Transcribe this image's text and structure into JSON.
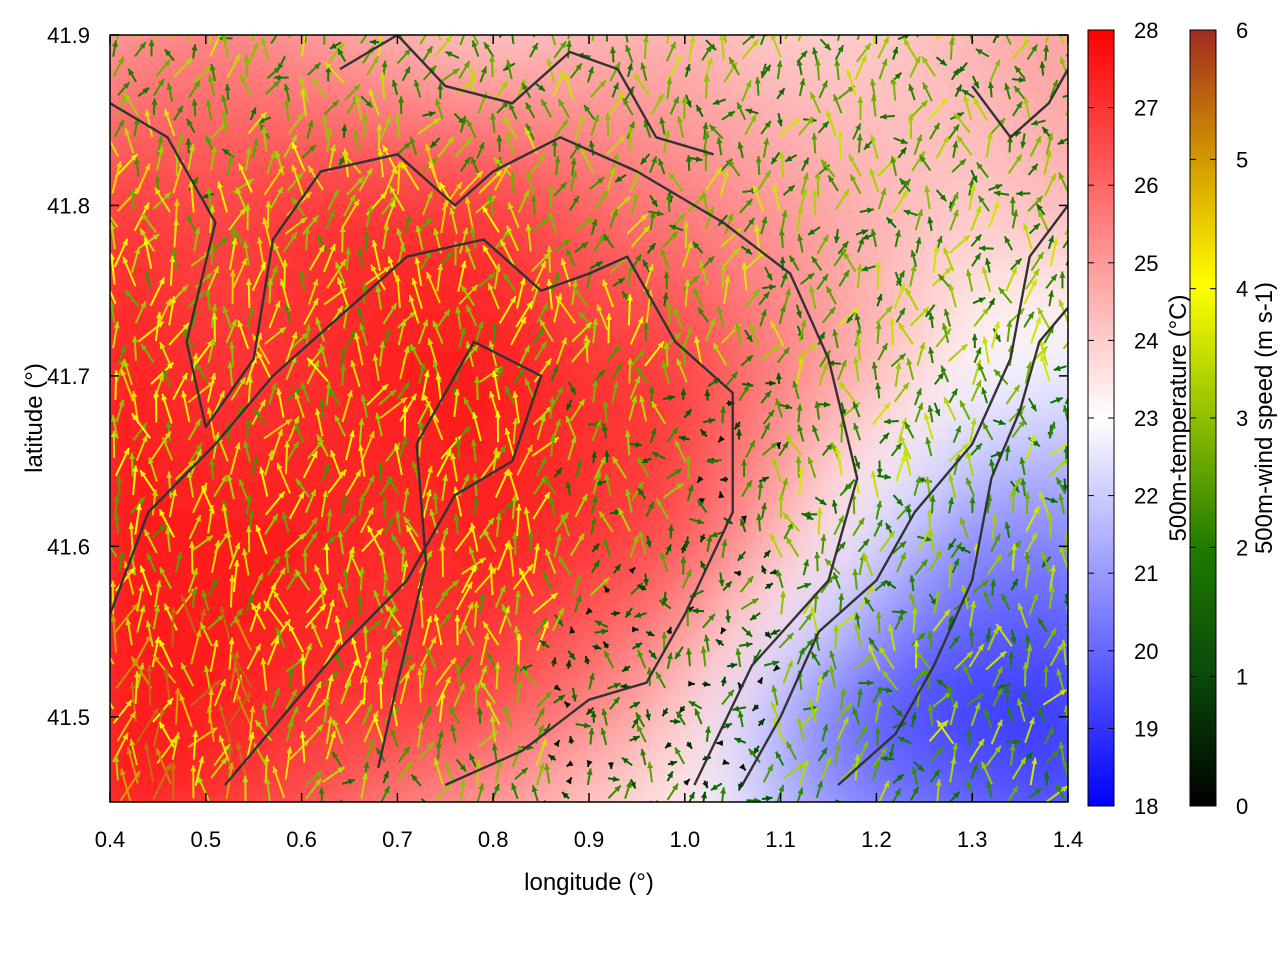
{
  "chart_data": {
    "type": "heatmap",
    "title": "",
    "xlabel": "longitude (°)",
    "ylabel": "latitude (°)",
    "xlim": [
      0.4,
      1.4
    ],
    "ylim": [
      41.45,
      41.9
    ],
    "x_ticks": [
      "0.4",
      "0.5",
      "0.6",
      "0.7",
      "0.8",
      "0.9",
      "1.0",
      "1.1",
      "1.2",
      "1.3",
      "1.4"
    ],
    "y_ticks": [
      "41.5",
      "41.6",
      "41.7",
      "41.8",
      "41.9"
    ],
    "temperature": {
      "label": "500m-temperature (°C)",
      "range": [
        18,
        28
      ],
      "ticks": [
        "18",
        "19",
        "20",
        "21",
        "22",
        "23",
        "24",
        "25",
        "26",
        "27",
        "28"
      ],
      "colors": [
        "#0000ff",
        "#ffffff",
        "#ff0000"
      ],
      "grid_lon": [
        0.4,
        0.5,
        0.6,
        0.7,
        0.8,
        0.9,
        1.0,
        1.1,
        1.2,
        1.3,
        1.4
      ],
      "grid_lat": [
        41.9,
        41.8,
        41.7,
        41.6,
        41.5,
        41.45
      ],
      "values": [
        [
          25.0,
          25.5,
          25.0,
          24.5,
          24.0,
          24.5,
          24.5,
          24.0,
          24.0,
          24.5,
          25.0
        ],
        [
          27.0,
          26.5,
          27.0,
          27.0,
          27.0,
          26.0,
          25.5,
          25.0,
          24.5,
          24.0,
          24.5
        ],
        [
          27.5,
          27.0,
          27.0,
          27.5,
          27.5,
          27.0,
          27.0,
          25.5,
          24.5,
          23.0,
          22.5
        ],
        [
          27.5,
          27.5,
          27.5,
          27.0,
          27.5,
          27.0,
          26.5,
          24.5,
          22.0,
          20.5,
          20.5
        ],
        [
          27.5,
          27.5,
          27.0,
          27.0,
          26.5,
          25.5,
          24.0,
          21.0,
          19.5,
          19.0,
          19.0
        ],
        [
          27.5,
          27.0,
          26.5,
          25.5,
          25.0,
          24.0,
          23.5,
          21.5,
          20.5,
          20.0,
          19.5
        ]
      ]
    },
    "wind_speed": {
      "label": "500m-wind speed (m s-1)",
      "range": [
        0,
        6
      ],
      "ticks": [
        "0",
        "1",
        "2",
        "3",
        "4",
        "5",
        "6"
      ],
      "colors": [
        "#000000",
        "#006400",
        "#2e8b00",
        "#9acd00",
        "#ffff00",
        "#d29a00",
        "#a52a2a"
      ]
    },
    "contours": [
      [
        [
          0.4,
          41.86
        ],
        [
          0.46,
          41.84
        ],
        [
          0.51,
          41.79
        ],
        [
          0.48,
          41.72
        ],
        [
          0.5,
          41.67
        ],
        [
          0.55,
          41.71
        ],
        [
          0.57,
          41.78
        ],
        [
          0.62,
          41.82
        ],
        [
          0.7,
          41.83
        ],
        [
          0.76,
          41.8
        ],
        [
          0.8,
          41.82
        ],
        [
          0.87,
          41.84
        ],
        [
          0.95,
          41.82
        ],
        [
          1.04,
          41.79
        ],
        [
          1.11,
          41.76
        ],
        [
          1.15,
          41.71
        ],
        [
          1.18,
          41.64
        ],
        [
          1.15,
          41.58
        ],
        [
          1.07,
          41.53
        ],
        [
          1.01,
          41.46
        ]
      ],
      [
        [
          0.4,
          41.56
        ],
        [
          0.44,
          41.62
        ],
        [
          0.51,
          41.66
        ],
        [
          0.57,
          41.7
        ],
        [
          0.63,
          41.73
        ],
        [
          0.71,
          41.77
        ],
        [
          0.79,
          41.78
        ],
        [
          0.85,
          41.75
        ],
        [
          0.9,
          41.76
        ],
        [
          0.94,
          41.77
        ],
        [
          0.99,
          41.72
        ],
        [
          1.05,
          41.69
        ],
        [
          1.05,
          41.62
        ],
        [
          1.0,
          41.56
        ],
        [
          0.96,
          41.52
        ],
        [
          0.9,
          41.51
        ],
        [
          0.83,
          41.48
        ],
        [
          0.75,
          41.46
        ]
      ],
      [
        [
          0.52,
          41.46
        ],
        [
          0.58,
          41.5
        ],
        [
          0.64,
          41.54
        ],
        [
          0.71,
          41.58
        ],
        [
          0.76,
          41.63
        ],
        [
          0.82,
          41.65
        ],
        [
          0.85,
          41.7
        ],
        [
          0.78,
          41.72
        ],
        [
          0.72,
          41.66
        ],
        [
          0.73,
          41.59
        ],
        [
          0.7,
          41.52
        ],
        [
          0.68,
          41.47
        ]
      ],
      [
        [
          0.64,
          41.88
        ],
        [
          0.7,
          41.9
        ],
        [
          0.75,
          41.87
        ],
        [
          0.82,
          41.86
        ],
        [
          0.88,
          41.89
        ],
        [
          0.93,
          41.88
        ],
        [
          0.97,
          41.84
        ],
        [
          1.03,
          41.83
        ]
      ],
      [
        [
          1.16,
          41.46
        ],
        [
          1.22,
          41.49
        ],
        [
          1.26,
          41.53
        ],
        [
          1.3,
          41.58
        ],
        [
          1.32,
          41.64
        ],
        [
          1.35,
          41.68
        ],
        [
          1.37,
          41.72
        ],
        [
          1.4,
          41.74
        ]
      ],
      [
        [
          1.06,
          41.46
        ],
        [
          1.1,
          41.5
        ],
        [
          1.14,
          41.55
        ],
        [
          1.2,
          41.58
        ],
        [
          1.24,
          41.62
        ],
        [
          1.3,
          41.66
        ],
        [
          1.34,
          41.71
        ],
        [
          1.36,
          41.77
        ],
        [
          1.4,
          41.8
        ]
      ],
      [
        [
          1.3,
          41.87
        ],
        [
          1.34,
          41.84
        ],
        [
          1.38,
          41.86
        ],
        [
          1.4,
          41.88
        ]
      ]
    ]
  }
}
